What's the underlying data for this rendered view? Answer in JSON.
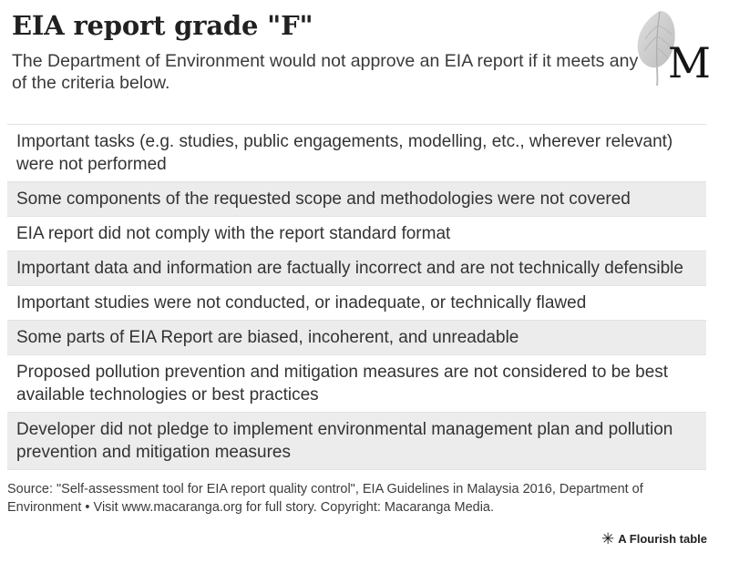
{
  "header": {
    "title": "EIA report grade \"F\"",
    "subtitle": "The Department of Environment would not approve an EIA report if it meets any of the criteria below."
  },
  "logo": {
    "letter": "M",
    "leaf_color": "#cccccc",
    "vein_color": "#b0b0b0"
  },
  "table": {
    "rows": [
      "Important tasks (e.g. studies, public engagements, modelling, etc., wherever relevant) were not performed",
      "Some components of the requested scope and methodologies were not covered",
      "EIA report did not comply with the report standard format",
      "Important data and information are factually incorrect and are not technically defensible",
      "Important studies were not conducted, or inadequate, or technically flawed",
      "Some parts of EIA Report are biased, incoherent, and unreadable",
      "Proposed pollution prevention and mitigation measures are not considered to be best available technologies or best practices",
      "Developer did not pledge to implement environmental management plan and pollution prevention and mitigation measures"
    ],
    "stripe_color": "#ececec",
    "border_color": "#e2e2e2"
  },
  "footer": {
    "source": "Source: \"Self-assessment tool for EIA report quality control\", EIA Guidelines in Malaysia 2016, Department of Environment • Visit www.macaranga.org for full story. Copyright: Macaranga Media.",
    "flourish_icon": "✳",
    "flourish_credit": "A Flourish table"
  }
}
